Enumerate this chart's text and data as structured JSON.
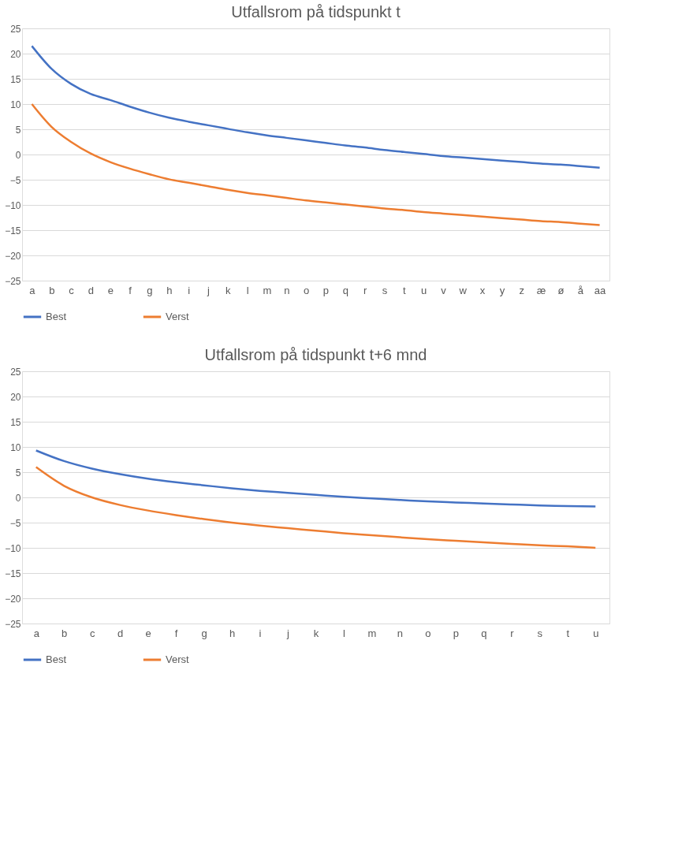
{
  "chart_data": [
    {
      "type": "line",
      "title": "Utfallsrom på tidspunkt t",
      "categories": [
        "a",
        "b",
        "c",
        "d",
        "e",
        "f",
        "g",
        "h",
        "i",
        "j",
        "k",
        "l",
        "m",
        "n",
        "o",
        "p",
        "q",
        "r",
        "s",
        "t",
        "u",
        "v",
        "w",
        "x",
        "y",
        "z",
        "æ",
        "ø",
        "å",
        "aa"
      ],
      "series": [
        {
          "name": "Best",
          "color": "#4472c4",
          "values": [
            21.5,
            17,
            14,
            12,
            10.8,
            9.5,
            8.3,
            7.3,
            6.5,
            5.8,
            5.1,
            4.4,
            3.8,
            3.3,
            2.8,
            2.3,
            1.8,
            1.4,
            0.9,
            0.5,
            0.1,
            -0.3,
            -0.6,
            -0.9,
            -1.2,
            -1.5,
            -1.8,
            -2.0,
            -2.3,
            -2.6
          ]
        },
        {
          "name": "Verst",
          "color": "#ed7d31",
          "values": [
            10,
            5.5,
            2.5,
            0.2,
            -1.5,
            -2.8,
            -3.9,
            -4.9,
            -5.6,
            -6.3,
            -7.0,
            -7.6,
            -8.1,
            -8.6,
            -9.1,
            -9.5,
            -9.9,
            -10.3,
            -10.7,
            -11.0,
            -11.4,
            -11.7,
            -12.0,
            -12.3,
            -12.6,
            -12.9,
            -13.2,
            -13.4,
            -13.7,
            -14.0
          ]
        }
      ],
      "ylim": [
        -25,
        25
      ],
      "yticks": [
        -25,
        -20,
        -15,
        -10,
        -5,
        0,
        5,
        10,
        15,
        20,
        25
      ],
      "grid": "y",
      "legend": "bottom",
      "marker": "none",
      "line_style": "solid"
    },
    {
      "type": "line",
      "title": "Utfallsrom på tidspunkt t+6 mnd",
      "categories": [
        "a",
        "b",
        "c",
        "d",
        "e",
        "f",
        "g",
        "h",
        "i",
        "j",
        "k",
        "l",
        "m",
        "n",
        "o",
        "p",
        "q",
        "r",
        "s",
        "t",
        "u"
      ],
      "series": [
        {
          "name": "Best",
          "color": "#4472c4",
          "values": [
            9.3,
            7.2,
            5.7,
            4.6,
            3.7,
            3.0,
            2.4,
            1.8,
            1.3,
            0.9,
            0.5,
            0.1,
            -0.2,
            -0.5,
            -0.8,
            -1.0,
            -1.2,
            -1.4,
            -1.6,
            -1.7,
            -1.8
          ]
        },
        {
          "name": "Verst",
          "color": "#ed7d31",
          "values": [
            6,
            2.3,
            0,
            -1.5,
            -2.6,
            -3.5,
            -4.3,
            -5.0,
            -5.6,
            -6.1,
            -6.6,
            -7.1,
            -7.5,
            -7.9,
            -8.3,
            -8.6,
            -8.9,
            -9.2,
            -9.5,
            -9.7,
            -10.0
          ]
        }
      ],
      "ylim": [
        -25,
        25
      ],
      "yticks": [
        -25,
        -20,
        -15,
        -10,
        -5,
        0,
        5,
        10,
        15,
        20,
        25
      ],
      "grid": "y",
      "legend": "bottom",
      "marker": "none",
      "line_style": "solid"
    }
  ]
}
